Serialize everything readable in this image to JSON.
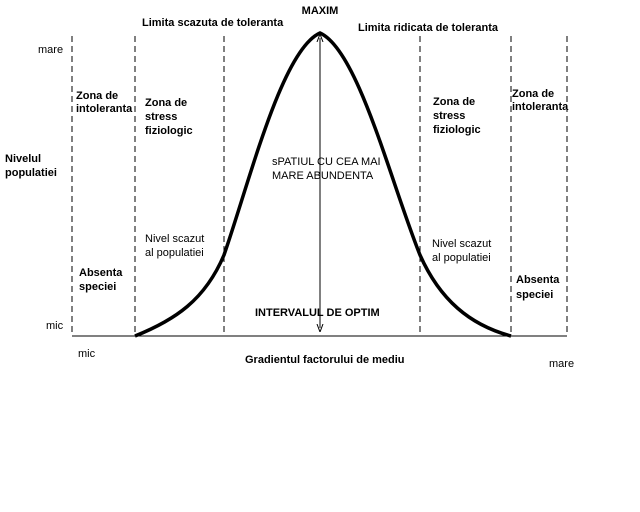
{
  "title": "MAXIM",
  "limits": {
    "low": "Limita scazuta de toleranta",
    "high": "Limita ridicata de toleranta"
  },
  "y_axis": {
    "label": [
      "Nivelul",
      "populatiei"
    ],
    "top": "mare",
    "bottom": "mic"
  },
  "x_axis": {
    "label": "Gradientul factorului de mediu",
    "left": "mic",
    "right": "mare"
  },
  "left_zones": {
    "intolerance": [
      "Zona de",
      "intoleranta"
    ],
    "stress": [
      "Zona de",
      "stress",
      "fiziologic"
    ],
    "low_level": [
      "Nivel scazut",
      "al populatiei"
    ],
    "absence": [
      "Absenta",
      "speciei"
    ]
  },
  "right_zones": {
    "intolerance": [
      "Zona de",
      "intoleranta"
    ],
    "stress": [
      "Zona de",
      "stress",
      "fiziologic"
    ],
    "low_level": [
      "Nivel scazut",
      "al populatiei"
    ],
    "absence": [
      "Absenta",
      "speciei"
    ]
  },
  "center": {
    "abundance": [
      "sPATIUL CU CEA MAI",
      "MARE ABUNDENTA"
    ],
    "optimum": "INTERVALUL DE OPTIM"
  }
}
